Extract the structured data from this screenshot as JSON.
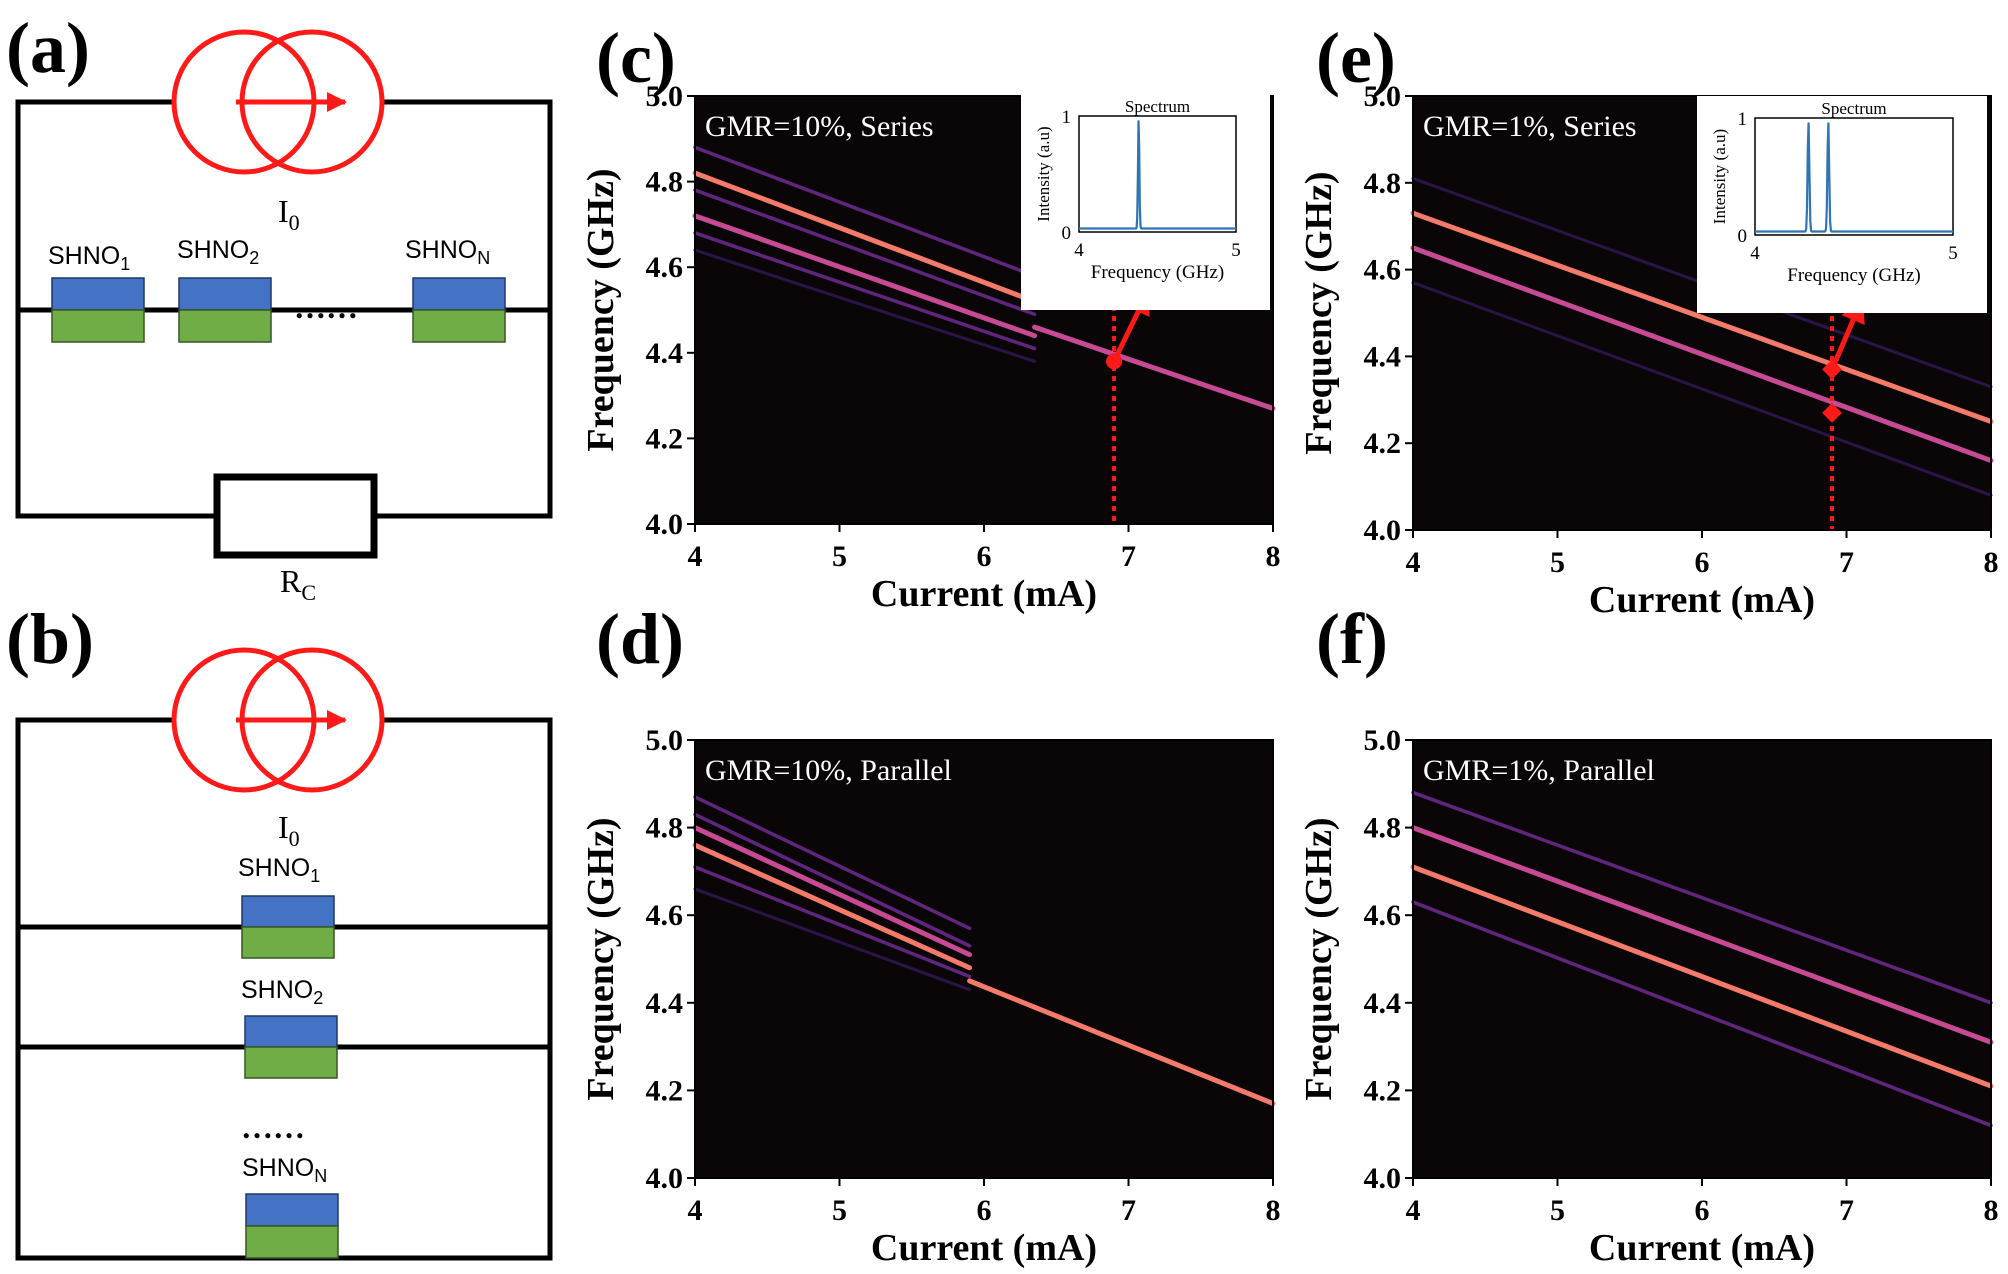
{
  "panel_labels": {
    "a": "(a)",
    "b": "(b)",
    "c": "(c)",
    "d": "(d)",
    "e": "(e)",
    "f": "(f)"
  },
  "circuit_a": {
    "source_label": "I",
    "source_sub": "0",
    "devices": [
      {
        "base": "SHNO",
        "sub": "1"
      },
      {
        "base": "SHNO",
        "sub": "2"
      },
      {
        "base": "SHNO",
        "sub": "N"
      }
    ],
    "ellipsis": "……",
    "resistor_label": "R",
    "resistor_sub": "C"
  },
  "circuit_b": {
    "source_label": "I",
    "source_sub": "0",
    "devices": [
      {
        "base": "SHNO",
        "sub": "1"
      },
      {
        "base": "SHNO",
        "sub": "2"
      },
      {
        "base": "SHNO",
        "sub": "N"
      }
    ],
    "ellipsis": "……"
  },
  "colors": {
    "background": "#0a0608",
    "line_bright": "#f47a6a",
    "line_mid": "#c64a94",
    "line_dim": "#6a2a8c",
    "line_faint": "#2e1650",
    "marker": "#ff1a1a",
    "device_top": "#4472c4",
    "device_bottom": "#70ad47",
    "spectrum": "#2e75b6"
  },
  "chart_data": [
    {
      "id": "c",
      "type": "heatmap",
      "annotation": "GMR=10%, Series",
      "xlabel": "Current (mA)",
      "ylabel": "Frequency (GHz)",
      "xlim": [
        4,
        8
      ],
      "ylim": [
        4.0,
        5.0
      ],
      "xticks": [
        "4",
        "5",
        "6",
        "7",
        "8"
      ],
      "yticks": [
        "4.0",
        "4.2",
        "4.4",
        "4.6",
        "4.8",
        "5.0"
      ],
      "lines": [
        {
          "x": [
            4,
            6.35
          ],
          "y": [
            4.88,
            4.58
          ],
          "level": "dim"
        },
        {
          "x": [
            4,
            6.35
          ],
          "y": [
            4.82,
            4.52
          ],
          "level": "bright"
        },
        {
          "x": [
            4,
            6.35
          ],
          "y": [
            4.78,
            4.49
          ],
          "level": "dim"
        },
        {
          "x": [
            4,
            6.35
          ],
          "y": [
            4.72,
            4.44
          ],
          "level": "mid"
        },
        {
          "x": [
            4,
            6.35
          ],
          "y": [
            4.68,
            4.41
          ],
          "level": "dim"
        },
        {
          "x": [
            4,
            6.35
          ],
          "y": [
            4.64,
            4.38
          ],
          "level": "faint"
        },
        {
          "x": [
            6.35,
            8
          ],
          "y": [
            4.46,
            4.27
          ],
          "level": "mid"
        }
      ],
      "marker": {
        "x": 6.9,
        "y": 4.38
      },
      "cut_x": 6.9,
      "inset": {
        "title": "Spectrum",
        "xlabel": "Frequency (GHz)",
        "ylabel": "Intensity (a.u)",
        "xlim": [
          4,
          5
        ],
        "ylim": [
          0,
          1
        ],
        "xticks": [
          "4",
          "5"
        ],
        "yticks": [
          "0",
          "1"
        ],
        "peaks": [
          4.38
        ]
      }
    },
    {
      "id": "d",
      "type": "heatmap",
      "annotation": "GMR=10%, Parallel",
      "xlabel": "Current (mA)",
      "ylabel": "Frequency (GHz)",
      "xlim": [
        4,
        8
      ],
      "ylim": [
        4.0,
        5.0
      ],
      "xticks": [
        "4",
        "5",
        "6",
        "7",
        "8"
      ],
      "yticks": [
        "4.0",
        "4.2",
        "4.4",
        "4.6",
        "4.8",
        "5.0"
      ],
      "lines": [
        {
          "x": [
            4,
            5.9
          ],
          "y": [
            4.87,
            4.57
          ],
          "level": "dim"
        },
        {
          "x": [
            4,
            5.9
          ],
          "y": [
            4.83,
            4.53
          ],
          "level": "dim"
        },
        {
          "x": [
            4,
            5.9
          ],
          "y": [
            4.8,
            4.51
          ],
          "level": "mid"
        },
        {
          "x": [
            4,
            5.9
          ],
          "y": [
            4.76,
            4.48
          ],
          "level": "bright"
        },
        {
          "x": [
            4,
            5.9
          ],
          "y": [
            4.71,
            4.46
          ],
          "level": "dim"
        },
        {
          "x": [
            4,
            5.9
          ],
          "y": [
            4.66,
            4.43
          ],
          "level": "faint"
        },
        {
          "x": [
            5.9,
            8
          ],
          "y": [
            4.45,
            4.17
          ],
          "level": "bright"
        }
      ]
    },
    {
      "id": "e",
      "type": "heatmap",
      "annotation": "GMR=1%, Series",
      "xlabel": "Current (mA)",
      "ylabel": "Frequency (GHz)",
      "xlim": [
        4,
        8
      ],
      "ylim": [
        4.0,
        5.0
      ],
      "xticks": [
        "4",
        "5",
        "6",
        "7",
        "8"
      ],
      "yticks": [
        "4.0",
        "4.2",
        "4.4",
        "4.6",
        "4.8",
        "5.0"
      ],
      "lines": [
        {
          "x": [
            4,
            8
          ],
          "y": [
            4.81,
            4.33
          ],
          "level": "faint"
        },
        {
          "x": [
            4,
            8
          ],
          "y": [
            4.73,
            4.25
          ],
          "level": "bright"
        },
        {
          "x": [
            4,
            8
          ],
          "y": [
            4.65,
            4.16
          ],
          "level": "mid"
        },
        {
          "x": [
            4,
            8
          ],
          "y": [
            4.57,
            4.08
          ],
          "level": "faint"
        }
      ],
      "markers": [
        {
          "x": 6.9,
          "y": 4.37
        },
        {
          "x": 6.9,
          "y": 4.27
        }
      ],
      "cut_x": 6.9,
      "inset": {
        "title": "Spectrum",
        "xlabel": "Frequency (GHz)",
        "ylabel": "Intensity (a.u)",
        "xlim": [
          4,
          5
        ],
        "ylim": [
          0,
          1
        ],
        "xticks": [
          "4",
          "5"
        ],
        "yticks": [
          "0",
          "1"
        ],
        "peaks": [
          4.27,
          4.37
        ]
      }
    },
    {
      "id": "f",
      "type": "heatmap",
      "annotation": "GMR=1%, Parallel",
      "xlabel": "Current (mA)",
      "ylabel": "Frequency (GHz)",
      "xlim": [
        4,
        8
      ],
      "ylim": [
        4.0,
        5.0
      ],
      "xticks": [
        "4",
        "5",
        "6",
        "7",
        "8"
      ],
      "yticks": [
        "4.0",
        "4.2",
        "4.4",
        "4.6",
        "4.8",
        "5.0"
      ],
      "lines": [
        {
          "x": [
            4,
            8
          ],
          "y": [
            4.88,
            4.4
          ],
          "level": "dim"
        },
        {
          "x": [
            4,
            8
          ],
          "y": [
            4.8,
            4.31
          ],
          "level": "mid"
        },
        {
          "x": [
            4,
            8
          ],
          "y": [
            4.71,
            4.21
          ],
          "level": "bright"
        },
        {
          "x": [
            4,
            8
          ],
          "y": [
            4.63,
            4.12
          ],
          "level": "dim"
        }
      ]
    }
  ]
}
